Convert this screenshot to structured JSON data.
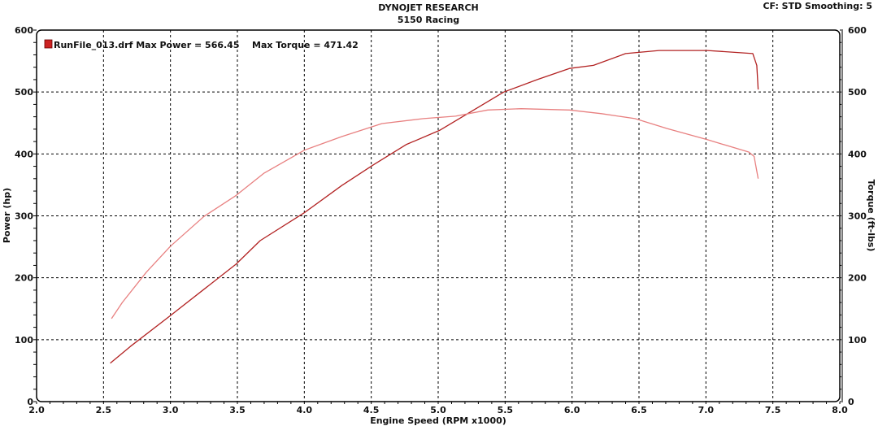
{
  "header": {
    "title": "DYNOJET RESEARCH",
    "subtitle": "5150 Racing",
    "info": "CF: STD  Smoothing: 5"
  },
  "legend": {
    "run_label": "RunFile_013.drf Max Power = 566.45",
    "torque_label": "Max Torque = 471.42",
    "swatch_color": "#cc2222"
  },
  "chart_data": {
    "type": "line",
    "xlabel": "Engine Speed (RPM x1000)",
    "ylabel": "Power (hp)",
    "y2label": "Torque (ft-lbs)",
    "xlim": [
      2.0,
      8.0
    ],
    "ylim": [
      0,
      600
    ],
    "y2lim": [
      0,
      600
    ],
    "xticks": [
      "2.0",
      "2.5",
      "3.0",
      "3.5",
      "4.0",
      "4.5",
      "5.0",
      "5.5",
      "6.0",
      "6.5",
      "7.0",
      "7.5",
      "8.0"
    ],
    "yticks": [
      "0",
      "100",
      "200",
      "300",
      "400",
      "500",
      "600"
    ],
    "y2ticks": [
      "0",
      "100",
      "200",
      "300",
      "400",
      "500",
      "600"
    ],
    "grid": true,
    "legend_position": "top-left",
    "series": [
      {
        "key": "power",
        "color": "#b22222",
        "axis": "left",
        "x": [
          2.55,
          2.7,
          3.0,
          3.49,
          3.67,
          4.0,
          4.28,
          4.52,
          4.76,
          5.01,
          5.25,
          5.49,
          5.74,
          5.98,
          6.16,
          6.4,
          6.65,
          7.01,
          7.35,
          7.38,
          7.39
        ],
        "y": [
          62,
          89,
          139,
          222,
          260,
          305,
          349,
          383,
          415,
          438,
          469,
          500,
          520,
          538,
          543,
          562,
          567,
          567,
          562,
          543,
          504
        ]
      },
      {
        "key": "torque",
        "color": "#e88080",
        "axis": "right",
        "x": [
          2.56,
          2.64,
          2.82,
          3.0,
          3.25,
          3.49,
          3.7,
          4.0,
          4.28,
          4.58,
          4.89,
          5.13,
          5.37,
          5.62,
          5.98,
          6.22,
          6.47,
          6.71,
          7.01,
          7.32,
          7.36,
          7.39
        ],
        "y": [
          134,
          160,
          209,
          251,
          299,
          333,
          369,
          406,
          428,
          449,
          457,
          461,
          471,
          473,
          471,
          465,
          457,
          441,
          423,
          403,
          396,
          360
        ]
      }
    ]
  }
}
